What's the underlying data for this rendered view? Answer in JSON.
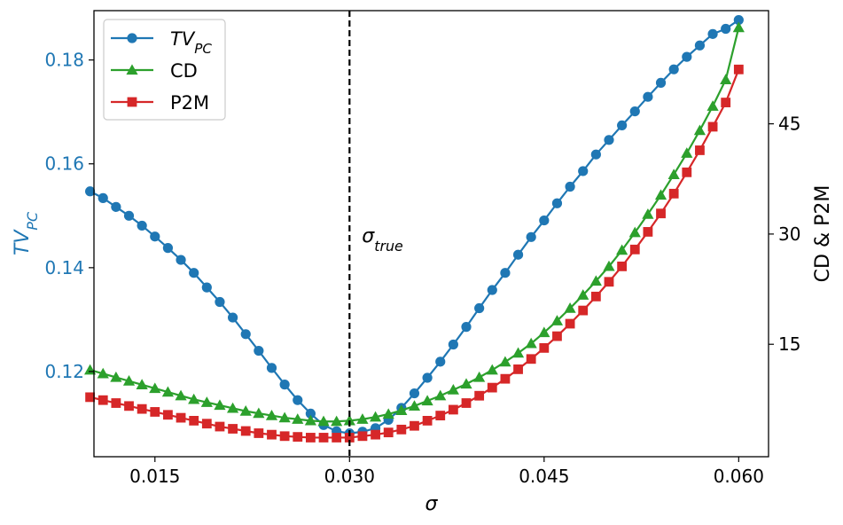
{
  "chart_data": {
    "type": "line",
    "xlabel": "σ",
    "ylabel_left": "TV",
    "ylabel_left_sub": "PC",
    "ylabel_right": "CD & P2M",
    "xlim": [
      0.0103,
      0.0623
    ],
    "ylim_left": [
      0.1036,
      0.1895
    ],
    "ylim_right": [
      -0.3,
      60.4
    ],
    "x_ticks": [
      0.015,
      0.03,
      0.045,
      0.06
    ],
    "x_tick_labels": [
      "0.015",
      "0.030",
      "0.045",
      "0.060"
    ],
    "y_left_ticks": [
      0.12,
      0.14,
      0.16,
      0.18
    ],
    "y_left_tick_labels": [
      "0.12",
      "0.14",
      "0.16",
      "0.18"
    ],
    "y_right_ticks": [
      15,
      30,
      45
    ],
    "y_right_tick_labels": [
      "15",
      "30",
      "45"
    ],
    "vline": {
      "x": 0.03,
      "label": "σ",
      "label_sub": "true"
    },
    "legend": {
      "position": "top-left"
    },
    "colors": {
      "tv": "#1f77b4",
      "cd": "#2ca02c",
      "p2m": "#d62728",
      "left_axis_text": "#1f77b4"
    },
    "x": [
      0.01,
      0.011,
      0.012,
      0.013,
      0.014,
      0.015,
      0.016,
      0.017,
      0.018,
      0.019,
      0.02,
      0.021,
      0.022,
      0.023,
      0.024,
      0.025,
      0.026,
      0.027,
      0.028,
      0.029,
      0.03,
      0.031,
      0.032,
      0.033,
      0.034,
      0.035,
      0.036,
      0.037,
      0.038,
      0.039,
      0.04,
      0.041,
      0.042,
      0.043,
      0.044,
      0.045,
      0.046,
      0.047,
      0.048,
      0.049,
      0.05,
      0.051,
      0.052,
      0.053,
      0.054,
      0.055,
      0.056,
      0.057,
      0.058,
      0.059,
      0.06
    ],
    "series": [
      {
        "name": "TV",
        "name_sub": "PC",
        "axis": "left",
        "marker": "circle",
        "values": [
          0.1547,
          0.1534,
          0.1517,
          0.15,
          0.1481,
          0.146,
          0.1438,
          0.1415,
          0.139,
          0.1362,
          0.1334,
          0.1304,
          0.1272,
          0.124,
          0.1207,
          0.1175,
          0.1145,
          0.1119,
          0.1097,
          0.1085,
          0.1081,
          0.1084,
          0.1091,
          0.1107,
          0.113,
          0.1158,
          0.1188,
          0.1219,
          0.1252,
          0.1286,
          0.1322,
          0.1357,
          0.139,
          0.1425,
          0.1459,
          0.1491,
          0.1524,
          0.1556,
          0.1586,
          0.1618,
          0.1646,
          0.1674,
          0.1701,
          0.1729,
          0.1756,
          0.1782,
          0.1806,
          0.1828,
          0.185,
          0.186,
          0.1877
        ]
      },
      {
        "name": "CD",
        "axis": "right",
        "marker": "triangle",
        "values": [
          11.5,
          11.0,
          10.5,
          10.0,
          9.5,
          9.0,
          8.5,
          8.0,
          7.5,
          7.1,
          6.7,
          6.3,
          5.9,
          5.6,
          5.3,
          5.0,
          4.8,
          4.6,
          4.5,
          4.5,
          4.6,
          4.8,
          5.1,
          5.5,
          6.0,
          6.6,
          7.3,
          8.0,
          8.8,
          9.6,
          10.5,
          11.5,
          12.6,
          13.8,
          15.1,
          16.6,
          18.2,
          19.9,
          21.7,
          23.6,
          25.6,
          27.8,
          30.2,
          32.7,
          35.3,
          38.1,
          41.0,
          44.1,
          47.4,
          51.0,
          58.1
        ]
      },
      {
        "name": "P2M",
        "axis": "right",
        "marker": "square",
        "values": [
          7.8,
          7.4,
          7.0,
          6.6,
          6.2,
          5.8,
          5.4,
          5.0,
          4.6,
          4.2,
          3.8,
          3.5,
          3.2,
          2.9,
          2.7,
          2.5,
          2.4,
          2.3,
          2.3,
          2.3,
          2.3,
          2.5,
          2.7,
          3.0,
          3.4,
          3.9,
          4.6,
          5.3,
          6.1,
          7.0,
          8.0,
          9.1,
          10.3,
          11.6,
          13.0,
          14.5,
          16.1,
          17.8,
          19.6,
          21.5,
          23.5,
          25.6,
          27.9,
          30.3,
          32.8,
          35.5,
          38.4,
          41.4,
          44.6,
          47.9,
          52.4
        ]
      }
    ]
  }
}
